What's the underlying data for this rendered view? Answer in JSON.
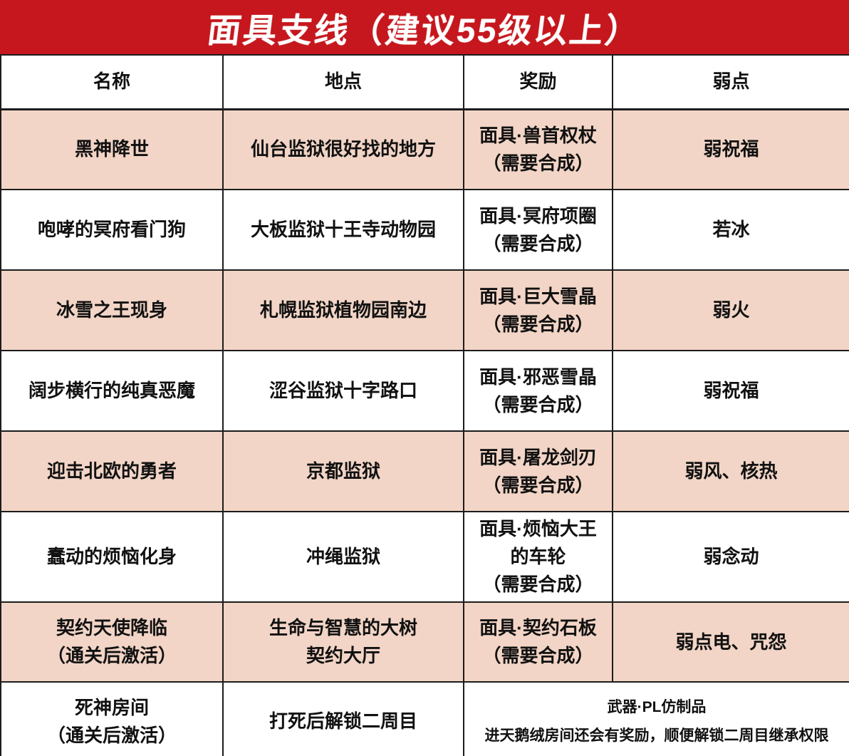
{
  "banner": {
    "title": "面具支线（建议55级以上）"
  },
  "colors": {
    "banner_red": "#C5171D",
    "row_pink": "#F2D5C6",
    "row_white": "#FFFFFF",
    "border_black": "#1C1C1C",
    "title_text": "#FFFFFF",
    "cell_text": "#111111"
  },
  "columns": [
    {
      "label": "名称"
    },
    {
      "label": "地点"
    },
    {
      "label": "奖励"
    },
    {
      "label": "弱点"
    }
  ],
  "rows": [
    {
      "name": "黑神降世",
      "location": "仙台监狱很好找的地方",
      "reward": "面具·兽首权杖\n（需要合成）",
      "weakness": "弱祝福"
    },
    {
      "name": "咆哮的冥府看门狗",
      "location": "大板监狱十王寺动物园",
      "reward": "面具·冥府项圈\n（需要合成）",
      "weakness": "若冰"
    },
    {
      "name": "冰雪之王现身",
      "location": "札幌监狱植物园南边",
      "reward": "面具·巨大雪晶\n（需要合成）",
      "weakness": "弱火"
    },
    {
      "name": "阔步横行的纯真恶魔",
      "location": "涩谷监狱十字路口",
      "reward": "面具·邪恶雪晶\n（需要合成）",
      "weakness": "弱祝福"
    },
    {
      "name": "迎击北欧的勇者",
      "location": "京都监狱",
      "reward": "面具·屠龙剑刃\n（需要合成）",
      "weakness": "弱风、核热"
    },
    {
      "name": "蠢动的烦恼化身",
      "location": "冲绳监狱",
      "reward": "面具·烦恼大王\n的车轮\n（需要合成）",
      "weakness": "弱念动"
    },
    {
      "name": "契约天使降临\n（通关后激活）",
      "location": "生命与智慧的大树\n契约大厅",
      "reward": "面具·契约石板\n（需要合成）",
      "weakness": "弱点电、咒怨"
    },
    {
      "name": "死神房间\n（通关后激活）",
      "location": "打死后解锁二周目",
      "reward_note_merged": "武器·PL仿制品\n进天鹅绒房间还会有奖励，顺便解锁二周目继承权限"
    }
  ]
}
